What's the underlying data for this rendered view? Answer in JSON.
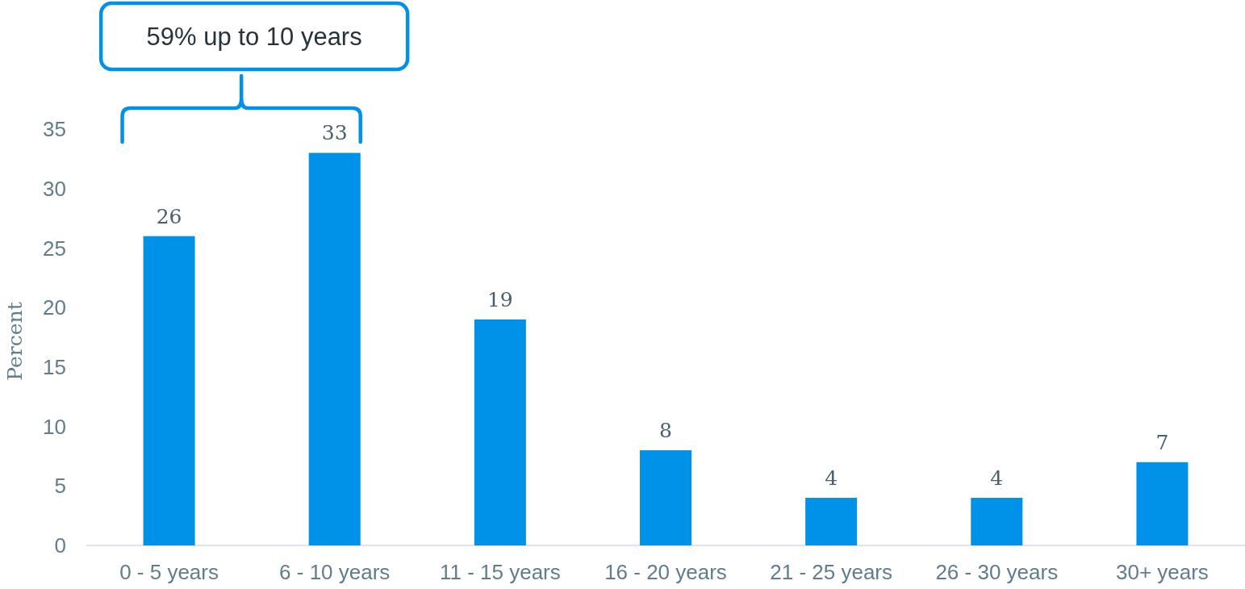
{
  "chart_data": {
    "type": "bar",
    "ylabel": "Percent",
    "categories": [
      "0 - 5 years",
      "6 - 10 years",
      "11 - 15 years",
      "16 - 20 years",
      "21 - 25 years",
      "26 - 30 years",
      "30+ years"
    ],
    "values": [
      26,
      33,
      19,
      8,
      4,
      4,
      7
    ],
    "color": "#0091e8",
    "ylim": [
      0,
      35
    ],
    "yticks": [
      0,
      5,
      10,
      15,
      20,
      25,
      30,
      35
    ],
    "data_labels": true,
    "annotations": [
      "59% up to 10 years"
    ]
  }
}
